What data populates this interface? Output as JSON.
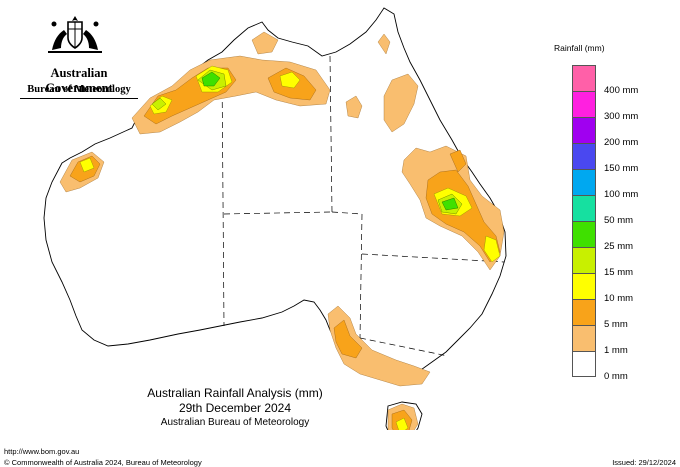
{
  "header": {
    "government": "Australian Government",
    "bureau": "Bureau of Meteorology"
  },
  "map": {
    "title": "Australian Rainfall Analysis (mm)",
    "date": "29th December 2024",
    "organisation": "Australian Bureau of Meteorology",
    "colors": {
      "land": "#ffffff",
      "rain_1": "#f9be6f",
      "rain_5": "#f8a31a",
      "rain_10": "#ffff00",
      "rain_15": "#c8f000",
      "rain_25": "#3fe000"
    }
  },
  "legend": {
    "title": "Rainfall (mm)",
    "items": [
      {
        "label": "400 mm",
        "color": "#ff60a8"
      },
      {
        "label": "300 mm",
        "color": "#ff20e0"
      },
      {
        "label": "200 mm",
        "color": "#a000f0"
      },
      {
        "label": "150 mm",
        "color": "#4a48f0"
      },
      {
        "label": "100 mm",
        "color": "#00a8f0"
      },
      {
        "label": "50 mm",
        "color": "#16e0a0"
      },
      {
        "label": "25 mm",
        "color": "#3fe000"
      },
      {
        "label": "15 mm",
        "color": "#c8f000"
      },
      {
        "label": "10 mm",
        "color": "#ffff00"
      },
      {
        "label": "5 mm",
        "color": "#f8a31a"
      },
      {
        "label": "1 mm",
        "color": "#f9be6f"
      },
      {
        "label": "0 mm",
        "color": "#ffffff"
      }
    ]
  },
  "footer": {
    "url": "http://www.bom.gov.au",
    "copyright": "© Commonwealth of Australia 2024, Bureau of Meteorology",
    "issued": "Issued: 29/12/2024"
  }
}
